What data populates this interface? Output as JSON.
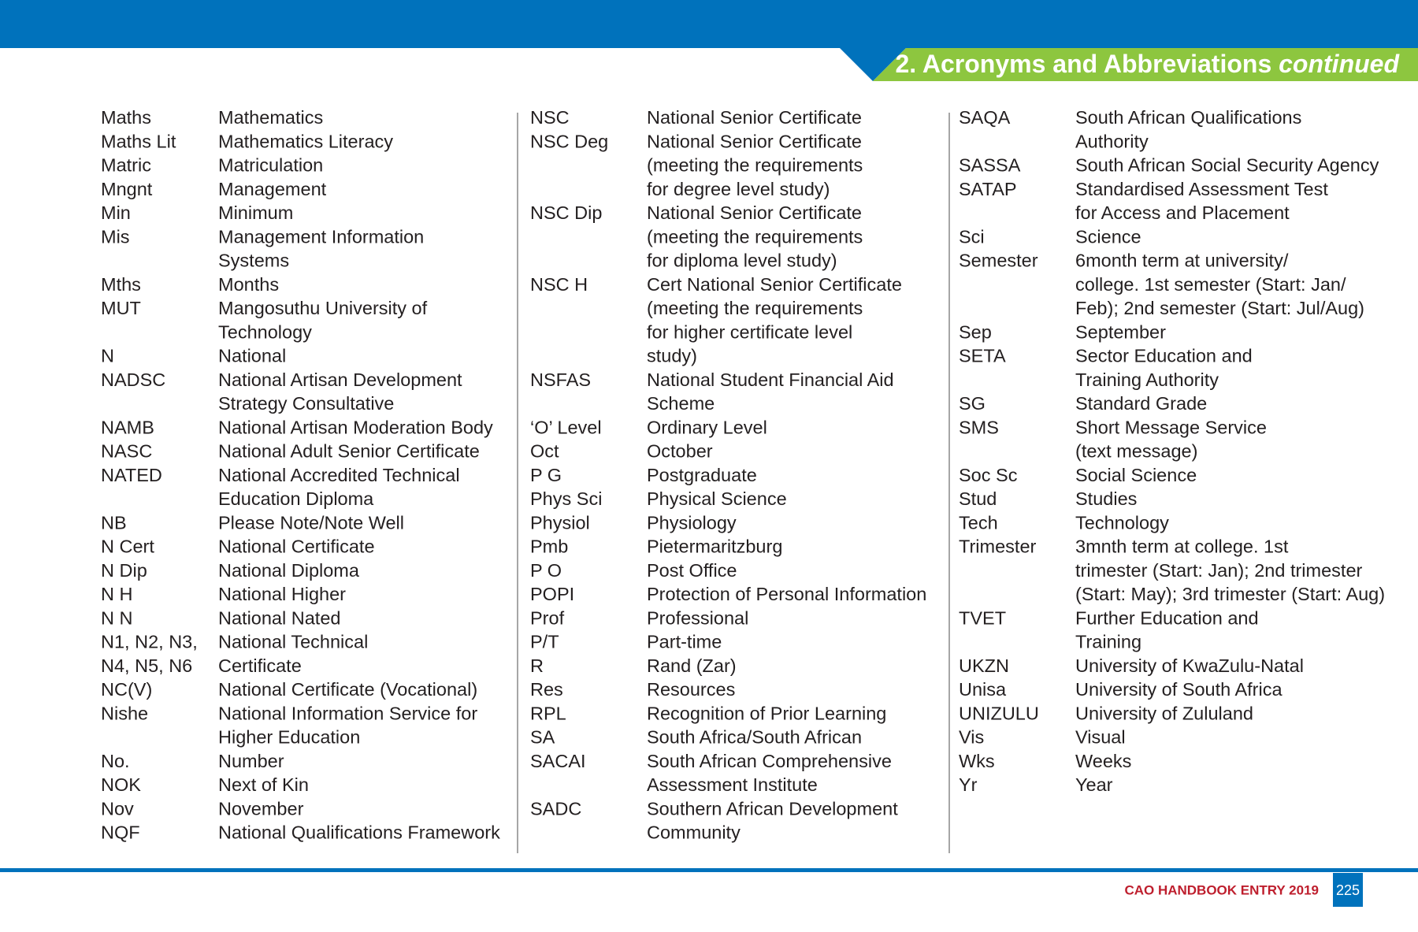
{
  "header": {
    "title": "2. Acronyms and Abbreviations",
    "subtitle": "continued"
  },
  "columns": [
    {
      "entries": [
        {
          "term": [
            "Maths"
          ],
          "definition": [
            "Mathematics"
          ]
        },
        {
          "term": [
            "Maths Lit"
          ],
          "definition": [
            "Mathematics Literacy"
          ]
        },
        {
          "term": [
            "Matric"
          ],
          "definition": [
            "Matriculation"
          ]
        },
        {
          "term": [
            "Mngnt"
          ],
          "definition": [
            "Management"
          ]
        },
        {
          "term": [
            "Min"
          ],
          "definition": [
            "Minimum"
          ]
        },
        {
          "term": [
            "Mis"
          ],
          "definition": [
            "Management Information",
            "Systems"
          ]
        },
        {
          "term": [
            "Mths"
          ],
          "definition": [
            "Months"
          ]
        },
        {
          "term": [
            "MUT"
          ],
          "definition": [
            "Mangosuthu University of",
            "Technology"
          ]
        },
        {
          "term": [
            "N"
          ],
          "definition": [
            "National"
          ]
        },
        {
          "term": [
            "NADSC"
          ],
          "definition": [
            "National Artisan Development",
            "Strategy Consultative"
          ]
        },
        {
          "term": [
            "NAMB"
          ],
          "definition": [
            "National Artisan Moderation Body"
          ]
        },
        {
          "term": [
            "NASC"
          ],
          "definition": [
            "National Adult Senior Certificate"
          ]
        },
        {
          "term": [
            "NATED"
          ],
          "definition": [
            "National Accredited Technical",
            "Education Diploma"
          ]
        },
        {
          "term": [
            "NB"
          ],
          "definition": [
            "Please Note/Note Well"
          ]
        },
        {
          "term": [
            "N Cert"
          ],
          "definition": [
            "National Certificate"
          ]
        },
        {
          "term": [
            "N Dip"
          ],
          "definition": [
            "National Diploma"
          ]
        },
        {
          "term": [
            "N H"
          ],
          "definition": [
            "National Higher"
          ]
        },
        {
          "term": [
            "N N"
          ],
          "definition": [
            "National Nated"
          ]
        },
        {
          "term": [
            "N1, N2, N3,",
            "N4, N5, N6"
          ],
          "definition": [
            "National Technical",
            "Certificate"
          ]
        },
        {
          "term": [
            "NC(V)"
          ],
          "definition": [
            "National Certificate (Vocational)"
          ]
        },
        {
          "term": [
            "Nishe"
          ],
          "definition": [
            "National Information Service for",
            "Higher Education"
          ]
        },
        {
          "term": [
            "No."
          ],
          "definition": [
            "Number"
          ]
        },
        {
          "term": [
            "NOK"
          ],
          "definition": [
            "Next of Kin"
          ]
        },
        {
          "term": [
            "Nov"
          ],
          "definition": [
            "November"
          ]
        },
        {
          "term": [
            "NQF"
          ],
          "definition": [
            "National Qualifications Framework"
          ]
        }
      ]
    },
    {
      "entries": [
        {
          "term": [
            "NSC"
          ],
          "definition": [
            "National Senior Certificate"
          ]
        },
        {
          "term": [
            "NSC Deg"
          ],
          "definition": [
            "National Senior Certificate",
            "(meeting the requirements",
            "for degree level study)"
          ]
        },
        {
          "term": [
            "NSC Dip"
          ],
          "definition": [
            "National Senior Certificate",
            "(meeting the requirements",
            "for diploma level study)"
          ]
        },
        {
          "term": [
            "NSC H"
          ],
          "definition": [
            "Cert National Senior Certificate",
            "(meeting the requirements",
            "for higher certificate level",
            "study)"
          ]
        },
        {
          "term": [
            "NSFAS"
          ],
          "definition": [
            "National Student Financial Aid",
            "Scheme"
          ]
        },
        {
          "term": [
            "‘O’ Level"
          ],
          "definition": [
            "Ordinary Level"
          ]
        },
        {
          "term": [
            "Oct"
          ],
          "definition": [
            "October"
          ]
        },
        {
          "term": [
            "P G"
          ],
          "definition": [
            "Postgraduate"
          ]
        },
        {
          "term": [
            "Phys Sci"
          ],
          "definition": [
            "Physical Science"
          ]
        },
        {
          "term": [
            "Physiol"
          ],
          "definition": [
            "Physiology"
          ]
        },
        {
          "term": [
            "Pmb"
          ],
          "definition": [
            "Pietermaritzburg"
          ]
        },
        {
          "term": [
            "P O"
          ],
          "definition": [
            "Post Office"
          ]
        },
        {
          "term": [
            "POPI"
          ],
          "definition": [
            "Protection of Personal Information"
          ]
        },
        {
          "term": [
            "Prof"
          ],
          "definition": [
            "Professional"
          ]
        },
        {
          "term": [
            "P/T"
          ],
          "definition": [
            "Part-time"
          ]
        },
        {
          "term": [
            "R"
          ],
          "definition": [
            "Rand (Zar)"
          ]
        },
        {
          "term": [
            "Res"
          ],
          "definition": [
            "Resources"
          ]
        },
        {
          "term": [
            "RPL"
          ],
          "definition": [
            "Recognition of Prior Learning"
          ]
        },
        {
          "term": [
            "SA"
          ],
          "definition": [
            "South Africa/South African"
          ]
        },
        {
          "term": [
            "SACAI"
          ],
          "definition": [
            "South African Comprehensive",
            "Assessment Institute"
          ]
        },
        {
          "term": [
            "SADC"
          ],
          "definition": [
            "Southern African Development",
            "Community"
          ]
        }
      ]
    },
    {
      "entries": [
        {
          "term": [
            "SAQA"
          ],
          "definition": [
            "South African Qualifications",
            "Authority"
          ]
        },
        {
          "term": [
            "SASSA"
          ],
          "definition": [
            "South African Social Security Agency"
          ]
        },
        {
          "term": [
            "SATAP"
          ],
          "definition": [
            "Standardised Assessment Test",
            "for Access and Placement"
          ]
        },
        {
          "term": [
            "Sci"
          ],
          "definition": [
            "Science"
          ]
        },
        {
          "term": [
            "Semester"
          ],
          "definition": [
            "6month term at university/",
            "college. 1st semester (Start: Jan/",
            "Feb); 2nd semester (Start: Jul/Aug)"
          ]
        },
        {
          "term": [
            "Sep"
          ],
          "definition": [
            "September"
          ]
        },
        {
          "term": [
            "SETA"
          ],
          "definition": [
            "Sector Education and",
            "Training Authority"
          ]
        },
        {
          "term": [
            "SG"
          ],
          "definition": [
            "Standard Grade"
          ]
        },
        {
          "term": [
            "SMS"
          ],
          "definition": [
            "Short Message Service",
            "(text message)"
          ]
        },
        {
          "term": [
            "Soc Sc"
          ],
          "definition": [
            "Social Science"
          ]
        },
        {
          "term": [
            "Stud"
          ],
          "definition": [
            "Studies"
          ]
        },
        {
          "term": [
            "Tech"
          ],
          "definition": [
            "Technology"
          ]
        },
        {
          "term": [
            "Trimester"
          ],
          "definition": [
            "3mnth term at college. 1st",
            "trimester (Start: Jan); 2nd trimester",
            "(Start: May); 3rd trimester (Start: Aug)"
          ]
        },
        {
          "term": [
            "TVET"
          ],
          "definition": [
            "Further Education and",
            "Training"
          ]
        },
        {
          "term": [
            "UKZN"
          ],
          "definition": [
            "University of KwaZulu-Natal"
          ]
        },
        {
          "term": [
            "Unisa"
          ],
          "definition": [
            "University of South Africa"
          ]
        },
        {
          "term": [
            "UNIZULU"
          ],
          "definition": [
            "University of Zululand"
          ]
        },
        {
          "term": [
            "Vis"
          ],
          "definition": [
            "Visual"
          ]
        },
        {
          "term": [
            "Wks"
          ],
          "definition": [
            "Weeks"
          ]
        },
        {
          "term": [
            "Yr"
          ],
          "definition": [
            "Year"
          ]
        }
      ]
    }
  ],
  "footer": {
    "text": "CAO HANDBOOK ENTRY 2019",
    "page": "225"
  }
}
